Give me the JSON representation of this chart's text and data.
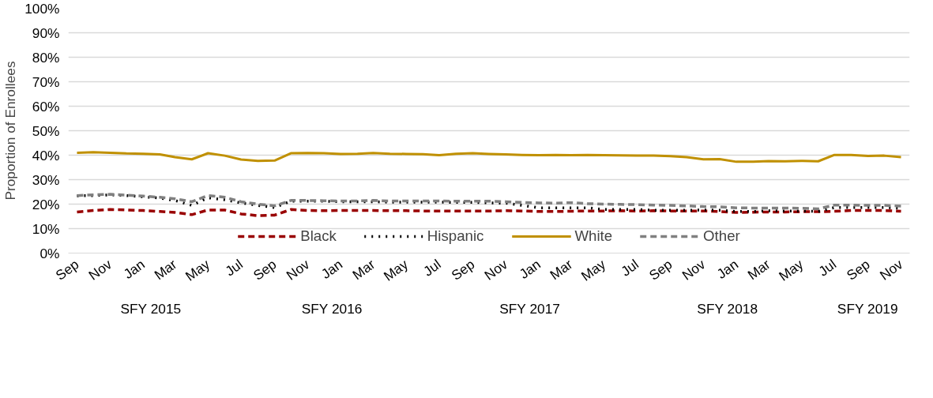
{
  "chart_data": {
    "type": "line",
    "ylabel": "Proportion of Enrollees",
    "x": [
      "2014-09",
      "2014-10",
      "2014-11",
      "2014-12",
      "2015-01",
      "2015-02",
      "2015-03",
      "2015-04",
      "2015-05",
      "2015-06",
      "2015-07",
      "2015-08",
      "2015-09",
      "2015-10",
      "2015-11",
      "2015-12",
      "2016-01",
      "2016-02",
      "2016-03",
      "2016-04",
      "2016-05",
      "2016-06",
      "2016-07",
      "2016-08",
      "2016-09",
      "2016-10",
      "2016-11",
      "2016-12",
      "2017-01",
      "2017-02",
      "2017-03",
      "2017-04",
      "2017-05",
      "2017-06",
      "2017-07",
      "2017-08",
      "2017-09",
      "2017-10",
      "2017-11",
      "2017-12",
      "2018-01",
      "2018-02",
      "2018-03",
      "2018-04",
      "2018-05",
      "2018-06",
      "2018-07",
      "2018-08",
      "2018-09",
      "2018-10",
      "2018-11"
    ],
    "series": [
      {
        "name": "Black",
        "color": "#990000",
        "line_style": "dashed",
        "values": [
          16.8,
          17.4,
          17.8,
          17.6,
          17.4,
          17,
          16.6,
          15.7,
          17.6,
          17.6,
          16,
          15.3,
          15.5,
          17.8,
          17.4,
          17.3,
          17.4,
          17.4,
          17.4,
          17.3,
          17.3,
          17.2,
          17.2,
          17.2,
          17.2,
          17.2,
          17.3,
          17.2,
          17,
          17,
          17.1,
          17.2,
          17.2,
          17.3,
          17.2,
          17.3,
          17.2,
          17.2,
          17.2,
          17,
          16.6,
          16.7,
          16.8,
          16.8,
          16.9,
          16.9,
          17.1,
          17.4,
          17.4,
          17.4,
          17.1
        ]
      },
      {
        "name": "Hispanic",
        "color": "#000000",
        "line_style": "dotted",
        "values": [
          23.4,
          23.5,
          23.8,
          23.5,
          23,
          22.5,
          21.5,
          19.5,
          22.6,
          21.8,
          20.5,
          19.5,
          18.6,
          21.2,
          21.2,
          21.2,
          21,
          21,
          21,
          20.8,
          20.8,
          20.8,
          20.8,
          20.7,
          20.7,
          20.5,
          20.4,
          19.5,
          18.5,
          18.5,
          18.5,
          18.5,
          17.8,
          17.8,
          17.8,
          17.5,
          17.5,
          17.5,
          17.6,
          17.5,
          17,
          17,
          17.3,
          17.2,
          17.2,
          17,
          18.6,
          18.6,
          18.6,
          18.6,
          18.3
        ]
      },
      {
        "name": "White",
        "color": "#c09000",
        "line_style": "solid",
        "values": [
          41,
          41.2,
          41,
          40.7,
          40.6,
          40.3,
          39.2,
          38.3,
          40.8,
          39.8,
          38.2,
          37.7,
          37.8,
          40.8,
          40.9,
          40.8,
          40.5,
          40.6,
          40.9,
          40.6,
          40.5,
          40.4,
          40,
          40.6,
          40.8,
          40.5,
          40.3,
          40.1,
          40,
          40.1,
          40,
          40.1,
          40,
          39.9,
          39.8,
          39.8,
          39.6,
          39.2,
          38.3,
          38.4,
          37.3,
          37.3,
          37.6,
          37.5,
          37.7,
          37.5,
          40.1,
          40.1,
          39.7,
          39.8,
          39.2
        ]
      },
      {
        "name": "Other",
        "color": "#808080",
        "line_style": "dashed",
        "values": [
          23.5,
          23.8,
          24,
          23.7,
          23.3,
          22.8,
          22.2,
          21,
          23.5,
          22.8,
          21,
          20,
          19.3,
          21.5,
          21.5,
          21.4,
          21.3,
          21.3,
          21.5,
          21.3,
          21.3,
          21.3,
          21.3,
          21.2,
          21.2,
          21.2,
          21,
          20.7,
          20.5,
          20.4,
          20.6,
          20.2,
          20,
          19.9,
          19.8,
          19.6,
          19.5,
          19.3,
          19,
          18.9,
          18.5,
          18.4,
          18.4,
          18.4,
          18.3,
          18.1,
          19.6,
          19.6,
          19.5,
          19.5,
          19.2
        ]
      }
    ],
    "xlim": [
      "2014-08-16",
      "2018-11-17"
    ],
    "xticks": [
      {
        "value": "2014-09",
        "label": "Sep"
      },
      {
        "value": "2014-11",
        "label": "Nov"
      },
      {
        "value": "2015-01",
        "label": "Jan"
      },
      {
        "value": "2015-03",
        "label": "Mar"
      },
      {
        "value": "2015-05",
        "label": "May"
      },
      {
        "value": "2015-07",
        "label": "Jul"
      },
      {
        "value": "2015-09",
        "label": "Sep"
      },
      {
        "value": "2015-11",
        "label": "Nov"
      },
      {
        "value": "2016-01",
        "label": "Jan"
      },
      {
        "value": "2016-03",
        "label": "Mar"
      },
      {
        "value": "2016-05",
        "label": "May"
      },
      {
        "value": "2016-07",
        "label": "Jul"
      },
      {
        "value": "2016-09",
        "label": "Sep"
      },
      {
        "value": "2016-11",
        "label": "Nov"
      },
      {
        "value": "2017-01",
        "label": "Jan"
      },
      {
        "value": "2017-03",
        "label": "Mar"
      },
      {
        "value": "2017-05",
        "label": "May"
      },
      {
        "value": "2017-07",
        "label": "Jul"
      },
      {
        "value": "2017-09",
        "label": "Sep"
      },
      {
        "value": "2017-11",
        "label": "Nov"
      },
      {
        "value": "2018-01",
        "label": "Jan"
      },
      {
        "value": "2018-03",
        "label": "Mar"
      },
      {
        "value": "2018-05",
        "label": "May"
      },
      {
        "value": "2018-07",
        "label": "Jul"
      },
      {
        "value": "2018-09",
        "label": "Sep"
      },
      {
        "value": "2018-11",
        "label": "Nov"
      }
    ],
    "ylim": [
      0,
      100
    ],
    "yticks": [
      {
        "value": 0,
        "label": "0%"
      },
      {
        "value": 10,
        "label": "10%"
      },
      {
        "value": 20,
        "label": "20%"
      },
      {
        "value": 30,
        "label": "30%"
      },
      {
        "value": 40,
        "label": "40%"
      },
      {
        "value": 50,
        "label": "50%"
      },
      {
        "value": 60,
        "label": "60%"
      },
      {
        "value": 70,
        "label": "70%"
      },
      {
        "value": 80,
        "label": "80%"
      },
      {
        "value": 90,
        "label": "90%"
      },
      {
        "value": 100,
        "label": "100%"
      }
    ],
    "annotations": [
      "SFY 2015",
      "SFY 2016",
      "SFY 2017",
      "SFY 2018",
      "SFY 2019"
    ],
    "grid": "y",
    "legend": "bottom",
    "marker": "none"
  }
}
